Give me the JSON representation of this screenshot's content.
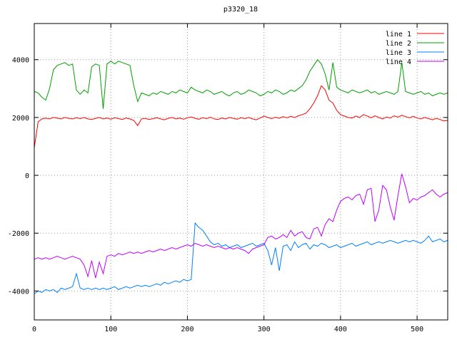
{
  "chart_data": {
    "type": "line",
    "title": "p3320_18",
    "xlabel": "",
    "ylabel": "",
    "xlim": [
      0,
      540
    ],
    "ylim": [
      -5000,
      5250
    ],
    "xticks": [
      0,
      100,
      200,
      300,
      400,
      500
    ],
    "yticks": [
      -4000,
      -2000,
      0,
      2000,
      4000
    ],
    "grid": true,
    "legend_position": "top-right-inside",
    "background": "#ffffff",
    "axis_color": "#000000",
    "grid_color": "#9a9a9a",
    "series": [
      {
        "name": "line 1",
        "color": "#ff0000",
        "x_start": 0,
        "x_step": 5,
        "y_values": [
          950,
          1850,
          1950,
          1980,
          1950,
          2000,
          1980,
          1950,
          2000,
          1970,
          1950,
          1990,
          1960,
          2000,
          1950,
          1930,
          1970,
          2000,
          1950,
          1980,
          1940,
          1990,
          1960,
          1930,
          1980,
          1950,
          1900,
          1720,
          1950,
          1970,
          1930,
          1960,
          1990,
          1950,
          1920,
          1970,
          2000,
          1950,
          1980,
          1940,
          1990,
          2020,
          1970,
          1940,
          1990,
          1960,
          2010,
          1950,
          1930,
          1980,
          1950,
          2000,
          1970,
          1940,
          1990,
          1960,
          2000,
          1950,
          1920,
          1980,
          2050,
          2000,
          1960,
          2010,
          1970,
          2030,
          1990,
          2040,
          2000,
          2060,
          2100,
          2150,
          2300,
          2500,
          2750,
          3100,
          2950,
          2600,
          2500,
          2250,
          2100,
          2050,
          2000,
          1980,
          2050,
          2000,
          2100,
          2050,
          1990,
          2060,
          2000,
          1950,
          2020,
          1980,
          2060,
          2010,
          2080,
          2030,
          1990,
          2040,
          1980,
          1950,
          2000,
          1960,
          1920,
          1970,
          1930,
          1880,
          1900
        ]
      },
      {
        "name": "line 2",
        "color": "#00a000",
        "x_start": 0,
        "x_step": 5,
        "y_values": [
          2900,
          2850,
          2700,
          2600,
          3000,
          3650,
          3800,
          3850,
          3900,
          3800,
          3850,
          2950,
          2800,
          2950,
          2850,
          3750,
          3850,
          3800,
          2300,
          3850,
          3950,
          3850,
          3950,
          3900,
          3850,
          3800,
          3100,
          2550,
          2850,
          2800,
          2750,
          2850,
          2800,
          2900,
          2850,
          2800,
          2900,
          2850,
          2950,
          2900,
          2850,
          3050,
          2950,
          2900,
          2850,
          2950,
          2900,
          2800,
          2850,
          2900,
          2800,
          2750,
          2850,
          2900,
          2800,
          2850,
          2950,
          2900,
          2850,
          2750,
          2800,
          2900,
          2850,
          2950,
          2900,
          2800,
          2850,
          2950,
          2900,
          3000,
          3100,
          3300,
          3600,
          3800,
          4000,
          3850,
          3500,
          2950,
          3900,
          3050,
          2950,
          2900,
          2850,
          2950,
          2900,
          2850,
          2900,
          2950,
          2850,
          2900,
          2800,
          2850,
          2900,
          2850,
          2800,
          2900,
          3900,
          2900,
          2850,
          2800,
          2850,
          2900,
          2800,
          2850,
          2750,
          2800,
          2850,
          2800,
          2850
        ]
      },
      {
        "name": "line 3",
        "color": "#0080ff",
        "x_start": 0,
        "x_step": 5,
        "y_values": [
          -4100,
          -4000,
          -4050,
          -3950,
          -4000,
          -3950,
          -4050,
          -3900,
          -3950,
          -3900,
          -3850,
          -3400,
          -3900,
          -3950,
          -3900,
          -3950,
          -3900,
          -3950,
          -3900,
          -3950,
          -3900,
          -3850,
          -3950,
          -3900,
          -3850,
          -3900,
          -3850,
          -3800,
          -3850,
          -3800,
          -3850,
          -3800,
          -3750,
          -3800,
          -3700,
          -3750,
          -3700,
          -3650,
          -3700,
          -3600,
          -3650,
          -3600,
          -1650,
          -1800,
          -1900,
          -2100,
          -2300,
          -2400,
          -2350,
          -2450,
          -2400,
          -2500,
          -2450,
          -2400,
          -2500,
          -2450,
          -2400,
          -2350,
          -2450,
          -2400,
          -2350,
          -2600,
          -3100,
          -2500,
          -3300,
          -2450,
          -2400,
          -2600,
          -2300,
          -2500,
          -2400,
          -2350,
          -2550,
          -2400,
          -2450,
          -2350,
          -2400,
          -2500,
          -2450,
          -2400,
          -2500,
          -2450,
          -2400,
          -2350,
          -2450,
          -2400,
          -2350,
          -2300,
          -2400,
          -2350,
          -2300,
          -2350,
          -2300,
          -2250,
          -2300,
          -2350,
          -2300,
          -2250,
          -2300,
          -2250,
          -2300,
          -2350,
          -2250,
          -2100,
          -2300,
          -2250,
          -2200,
          -2300,
          -2250
        ]
      },
      {
        "name": "line 4",
        "color": "#c000ff",
        "x_start": 0,
        "x_step": 5,
        "y_values": [
          -2900,
          -2850,
          -2900,
          -2850,
          -2900,
          -2850,
          -2800,
          -2850,
          -2900,
          -2850,
          -2800,
          -2850,
          -2900,
          -3100,
          -3500,
          -2950,
          -3550,
          -3000,
          -3400,
          -2800,
          -2750,
          -2800,
          -2700,
          -2750,
          -2700,
          -2650,
          -2700,
          -2650,
          -2700,
          -2650,
          -2600,
          -2650,
          -2600,
          -2550,
          -2600,
          -2550,
          -2500,
          -2550,
          -2500,
          -2450,
          -2400,
          -2450,
          -2350,
          -2400,
          -2450,
          -2400,
          -2450,
          -2500,
          -2450,
          -2500,
          -2550,
          -2500,
          -2550,
          -2500,
          -2550,
          -2600,
          -2700,
          -2550,
          -2500,
          -2450,
          -2400,
          -2150,
          -2100,
          -2200,
          -2150,
          -2050,
          -2150,
          -1900,
          -2100,
          -2000,
          -1950,
          -2150,
          -2200,
          -1850,
          -1800,
          -2100,
          -1700,
          -1500,
          -1600,
          -1200,
          -900,
          -800,
          -750,
          -850,
          -700,
          -650,
          -1000,
          -500,
          -450,
          -1600,
          -1200,
          -350,
          -500,
          -1100,
          -1550,
          -700,
          50,
          -400,
          -950,
          -800,
          -850,
          -750,
          -700,
          -600,
          -500,
          -650,
          -750,
          -650,
          -600
        ]
      }
    ]
  }
}
